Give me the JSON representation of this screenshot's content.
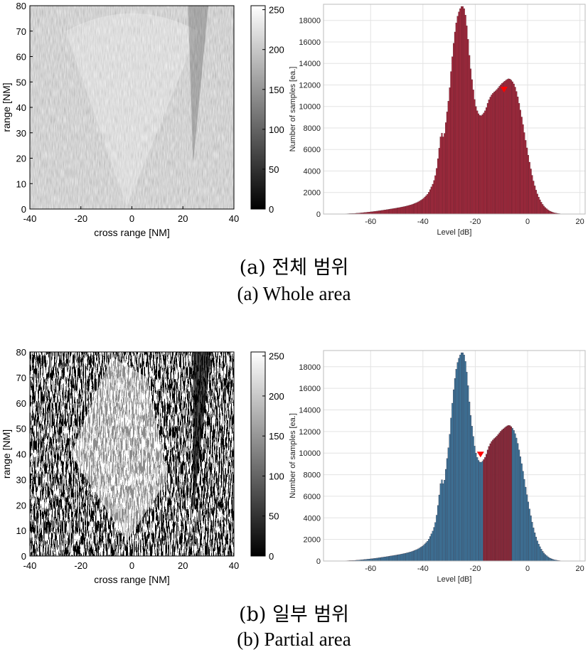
{
  "panels": [
    {
      "caption_ko": "(a)  전체  범위",
      "caption_en": "(a)  Whole area"
    },
    {
      "caption_ko": "(b)  일부  범위",
      "caption_en": "(b)  Partial area"
    }
  ],
  "colors": {
    "hist_whole": "#a4283c",
    "hist_blue": "#3b78a0",
    "hist_selected": "#8e2a3c",
    "marker": "#ff0000"
  },
  "chart_data": [
    {
      "type": "heatmap",
      "panel": "a",
      "xlabel": "cross range [NM]",
      "ylabel": "range [NM]",
      "xlim": [
        -40,
        40
      ],
      "ylim": [
        0,
        80
      ],
      "xticks": [
        -40,
        -20,
        0,
        20,
        40
      ],
      "yticks": [
        0,
        10,
        20,
        30,
        40,
        50,
        60,
        70,
        80
      ],
      "colorbar": {
        "ticks": [
          0,
          50,
          100,
          150,
          200,
          250
        ],
        "range": [
          0,
          255
        ],
        "colormap": "gray"
      },
      "style": "grayscale"
    },
    {
      "type": "bar",
      "panel": "a",
      "xlabel": "Level [dB]",
      "ylabel": "Number of samples [ea.]",
      "xlim": [
        -78,
        22
      ],
      "ylim": [
        0,
        19500
      ],
      "xticks": [
        -60,
        -40,
        -20,
        0,
        20
      ],
      "yticks": [
        0,
        2000,
        4000,
        6000,
        8000,
        10000,
        12000,
        14000,
        16000,
        18000
      ],
      "grid": true,
      "x": [
        -76,
        -74,
        -72,
        -70,
        -68,
        -66,
        -64,
        -62,
        -60,
        -58,
        -56,
        -54,
        -52,
        -50,
        -48,
        -46,
        -44,
        -42,
        -40,
        -38,
        -36,
        -35,
        -34,
        -33,
        -32,
        -31,
        -30,
        -29,
        -28,
        -27,
        -26,
        -25,
        -24,
        -23,
        -22,
        -21,
        -20,
        -19,
        -18,
        -17,
        -16,
        -15,
        -14,
        -13,
        -12,
        -11,
        -10,
        -9,
        -8,
        -7,
        -6,
        -5,
        -4,
        -3,
        -2,
        -1,
        0,
        1,
        2,
        3,
        4,
        5,
        6,
        7,
        8,
        9,
        10,
        11,
        12,
        13,
        14,
        15,
        16,
        18,
        20
      ],
      "values": [
        0,
        0,
        10,
        20,
        40,
        60,
        100,
        150,
        200,
        260,
        330,
        400,
        480,
        560,
        650,
        760,
        900,
        1100,
        1400,
        1900,
        2900,
        3800,
        5600,
        7700,
        7000,
        9000,
        11000,
        14000,
        16500,
        18200,
        19000,
        19400,
        19000,
        17000,
        14000,
        12000,
        10200,
        9400,
        9100,
        9300,
        9700,
        10500,
        11000,
        11300,
        11500,
        11800,
        12100,
        12300,
        12500,
        12600,
        12400,
        12000,
        11200,
        10000,
        8700,
        7200,
        5800,
        4500,
        3300,
        2400,
        1700,
        1200,
        800,
        550,
        350,
        220,
        130,
        80,
        40,
        20,
        10,
        5,
        0,
        0,
        0
      ],
      "marker": {
        "x": -9,
        "y": 11500
      },
      "series": [
        {
          "values_ref": "values"
        }
      ]
    },
    {
      "type": "heatmap",
      "panel": "b",
      "xlabel": "cross range [NM]",
      "ylabel": "range [NM]",
      "xlim": [
        -40,
        40
      ],
      "ylim": [
        0,
        80
      ],
      "xticks": [
        -40,
        -20,
        0,
        20,
        40
      ],
      "yticks": [
        0,
        10,
        20,
        30,
        40,
        50,
        60,
        70,
        80
      ],
      "colorbar": {
        "ticks": [
          0,
          50,
          100,
          150,
          200,
          250
        ],
        "range": [
          0,
          255
        ],
        "colormap": "gray"
      },
      "style": "binary"
    },
    {
      "type": "bar",
      "panel": "b",
      "xlabel": "Level [dB]",
      "ylabel": "Number of samples [ea.]",
      "xlim": [
        -78,
        22
      ],
      "ylim": [
        0,
        19500
      ],
      "xticks": [
        -60,
        -40,
        -20,
        0,
        20
      ],
      "yticks": [
        0,
        2000,
        4000,
        6000,
        8000,
        10000,
        12000,
        14000,
        16000,
        18000
      ],
      "grid": true,
      "highlight_range": [
        -17,
        -6
      ],
      "marker": {
        "x": -18,
        "y": 9800
      }
    }
  ]
}
